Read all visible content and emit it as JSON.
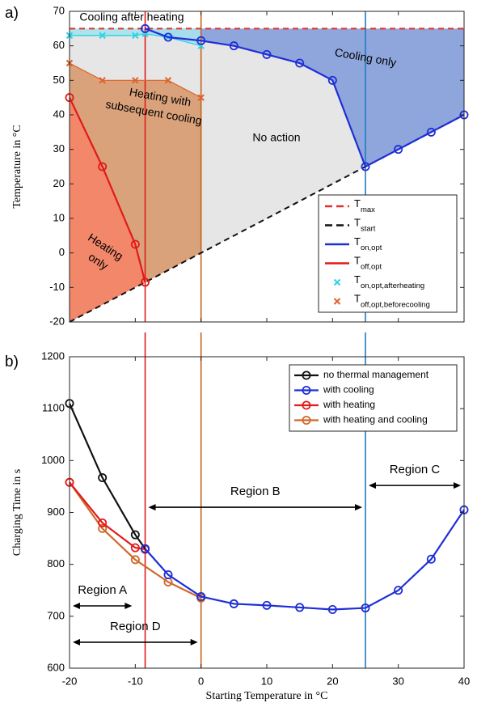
{
  "chart_data": [
    {
      "panel_label": "a)",
      "type": "area",
      "ylabel": "Temperature in °C",
      "xlim": [
        -20,
        40
      ],
      "ylim": [
        -20,
        70
      ],
      "xticks": [
        -20,
        -10,
        0,
        10,
        20,
        30,
        40
      ],
      "yticks": [
        -20,
        -10,
        0,
        10,
        20,
        30,
        40,
        50,
        60,
        70
      ],
      "xtick_labels": [
        "",
        "",
        "",
        "",
        "",
        "",
        ""
      ],
      "ytick_labels": [
        "-20",
        "-10",
        "0",
        "10",
        "20",
        "30",
        "40",
        "50",
        "60",
        "70"
      ],
      "grid": false,
      "legend_position": "lower-right",
      "vertical_lines": [
        {
          "x": -8.5,
          "color": "#e21a1a"
        },
        {
          "x": 0,
          "color": "#c5621a"
        },
        {
          "x": 25,
          "color": "#1f7bbf"
        }
      ],
      "series": [
        {
          "legend_main": "T",
          "legend_sub": "max",
          "style": "dashed",
          "color": "#e0302a",
          "x": [
            -20,
            40
          ],
          "y": [
            65,
            65
          ]
        },
        {
          "legend_main": "T",
          "legend_sub": "start",
          "style": "dashed",
          "color": "#111111",
          "x": [
            -20,
            40
          ],
          "y": [
            -20,
            40
          ]
        },
        {
          "legend_main": "T",
          "legend_sub": "on,opt",
          "style": "line-circle",
          "color": "#1f2fd6",
          "x": [
            -8.5,
            -5,
            0,
            5,
            10,
            15,
            20,
            25,
            30,
            35,
            40
          ],
          "y": [
            65,
            62.5,
            61.5,
            60,
            57.5,
            55,
            50,
            25,
            30,
            35,
            40
          ]
        },
        {
          "legend_main": "T",
          "legend_sub": "off,opt",
          "style": "line-circle",
          "color": "#e21a1a",
          "x": [
            -20,
            -15,
            -10,
            -8.5
          ],
          "y": [
            45,
            25,
            2.5,
            -8.5
          ]
        },
        {
          "legend_main": "T",
          "legend_sub": "on,opt,afterheating",
          "style": "line-x",
          "color": "#2ed3e6",
          "x": [
            -20,
            -15,
            -10,
            -8.5,
            -5,
            0
          ],
          "y": [
            63,
            63,
            63,
            63.5,
            62.5,
            60
          ]
        },
        {
          "legend_main": "T",
          "legend_sub": "off,opt,beforecooling",
          "style": "line-x",
          "color": "#e0622a",
          "x": [
            -20,
            -15,
            -10,
            -5,
            0
          ],
          "y": [
            55,
            50,
            50,
            50,
            45
          ]
        }
      ],
      "region_labels": [
        {
          "lines": [
            "Cooling after heating"
          ]
        },
        {
          "lines": [
            "Cooling only"
          ]
        },
        {
          "lines": [
            "Heating with",
            "subsequent cooling"
          ]
        },
        {
          "lines": [
            "No action"
          ]
        },
        {
          "lines": [
            "Heating",
            "only"
          ]
        }
      ],
      "region_colors": {
        "heating_only": "#f2876a",
        "heating_with_cooling": "#d9a27a",
        "no_action": "#e6e6e6",
        "cooling_only": "#8ea6dc",
        "cooling_after_heating": "#a9e2ec"
      }
    },
    {
      "panel_label": "b)",
      "type": "line",
      "xlabel": "Starting Temperature in °C",
      "ylabel": "Charging Time in s",
      "xlim": [
        -20,
        40
      ],
      "ylim": [
        600,
        1200
      ],
      "xticks": [
        -20,
        -10,
        0,
        10,
        20,
        30,
        40
      ],
      "yticks": [
        600,
        700,
        800,
        900,
        1000,
        1100,
        1200
      ],
      "xtick_labels": [
        "-20",
        "-10",
        "0",
        "10",
        "20",
        "30",
        "40"
      ],
      "ytick_labels": [
        "600",
        "700",
        "800",
        "900",
        "1000",
        "1100",
        "1200"
      ],
      "grid": false,
      "legend_position": "top-right",
      "vertical_lines": [
        {
          "x": -8.5,
          "color": "#e21a1a"
        },
        {
          "x": 0,
          "color": "#c5621a"
        },
        {
          "x": 25,
          "color": "#1f7bbf"
        }
      ],
      "series": [
        {
          "name": "no thermal management",
          "color": "#111111",
          "x": [
            -20,
            -15,
            -10,
            -8.5
          ],
          "y": [
            1110,
            967,
            857,
            830
          ]
        },
        {
          "name": "with cooling",
          "color": "#1f2fd6",
          "x": [
            -8.5,
            -5,
            0,
            5,
            10,
            15,
            20,
            25,
            30,
            35,
            40
          ],
          "y": [
            830,
            780,
            738,
            724,
            721,
            717,
            713,
            716,
            750,
            810,
            905
          ]
        },
        {
          "name": "with heating",
          "color": "#e21a1a",
          "x": [
            -20,
            -15,
            -10,
            -8.5
          ],
          "y": [
            958,
            880,
            832,
            829
          ]
        },
        {
          "name": "with heating and cooling",
          "color": "#d0682a",
          "x": [
            -20,
            -15,
            -10,
            -5,
            0
          ],
          "y": [
            958,
            869,
            809,
            766,
            735
          ]
        }
      ],
      "regions": [
        {
          "label": "Region A",
          "x_from": -20,
          "x_to": -10,
          "y": 720
        },
        {
          "label": "Region B",
          "x_from": -8.5,
          "x_to": 25,
          "y": 910
        },
        {
          "label": "Region C",
          "x_from": 25,
          "x_to": 40,
          "y": 952
        },
        {
          "label": "Region D",
          "x_from": -20,
          "x_to": 0,
          "y": 650
        }
      ]
    }
  ]
}
